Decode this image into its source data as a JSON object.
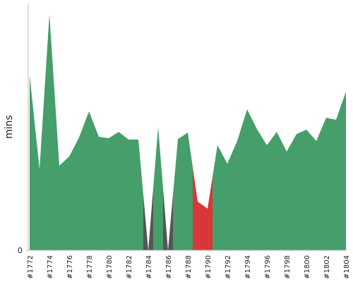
{
  "chart_data": {
    "type": "area",
    "y_label": "mins",
    "categories": [
      "#1772",
      null,
      "#1774",
      null,
      "#1776",
      null,
      "#1778",
      null,
      "#1780",
      null,
      "#1782",
      null,
      "#1784",
      null,
      "#1786",
      null,
      "#1788",
      null,
      "#1790",
      null,
      "#1792",
      null,
      "#1794",
      null,
      "#1796",
      null,
      "#1798",
      null,
      "#1800",
      null,
      "#1802",
      null,
      "#1804"
    ],
    "values": [
      70.9,
      32.9,
      95.7,
      34.3,
      38,
      45.7,
      56.3,
      46,
      45.4,
      48,
      44.9,
      44.9,
      0,
      50,
      0,
      45.1,
      47.7,
      19.7,
      16.9,
      42.6,
      35.1,
      44.3,
      57.1,
      49.1,
      42.6,
      48,
      40,
      47.1,
      48.9,
      44.3,
      53.7,
      52.9,
      64.3
    ],
    "point_colors": [
      "#469e6a",
      "#469e6a",
      "#469e6a",
      "#469e6a",
      "#469e6a",
      "#469e6a",
      "#469e6a",
      "#469e6a",
      "#469e6a",
      "#469e6a",
      "#469e6a",
      "#469e6a",
      "#555555",
      "#469e6a",
      "#555555",
      "#469e6a",
      "#469e6a",
      "#d9363a",
      "#d9363a",
      "#469e6a",
      "#469e6a",
      "#469e6a",
      "#469e6a",
      "#469e6a",
      "#469e6a",
      "#469e6a",
      "#469e6a",
      "#469e6a",
      "#469e6a",
      "#469e6a",
      "#469e6a",
      "#469e6a",
      "#469e6a"
    ],
    "ylim": [
      0,
      100
    ],
    "yticks": [
      0
    ]
  }
}
